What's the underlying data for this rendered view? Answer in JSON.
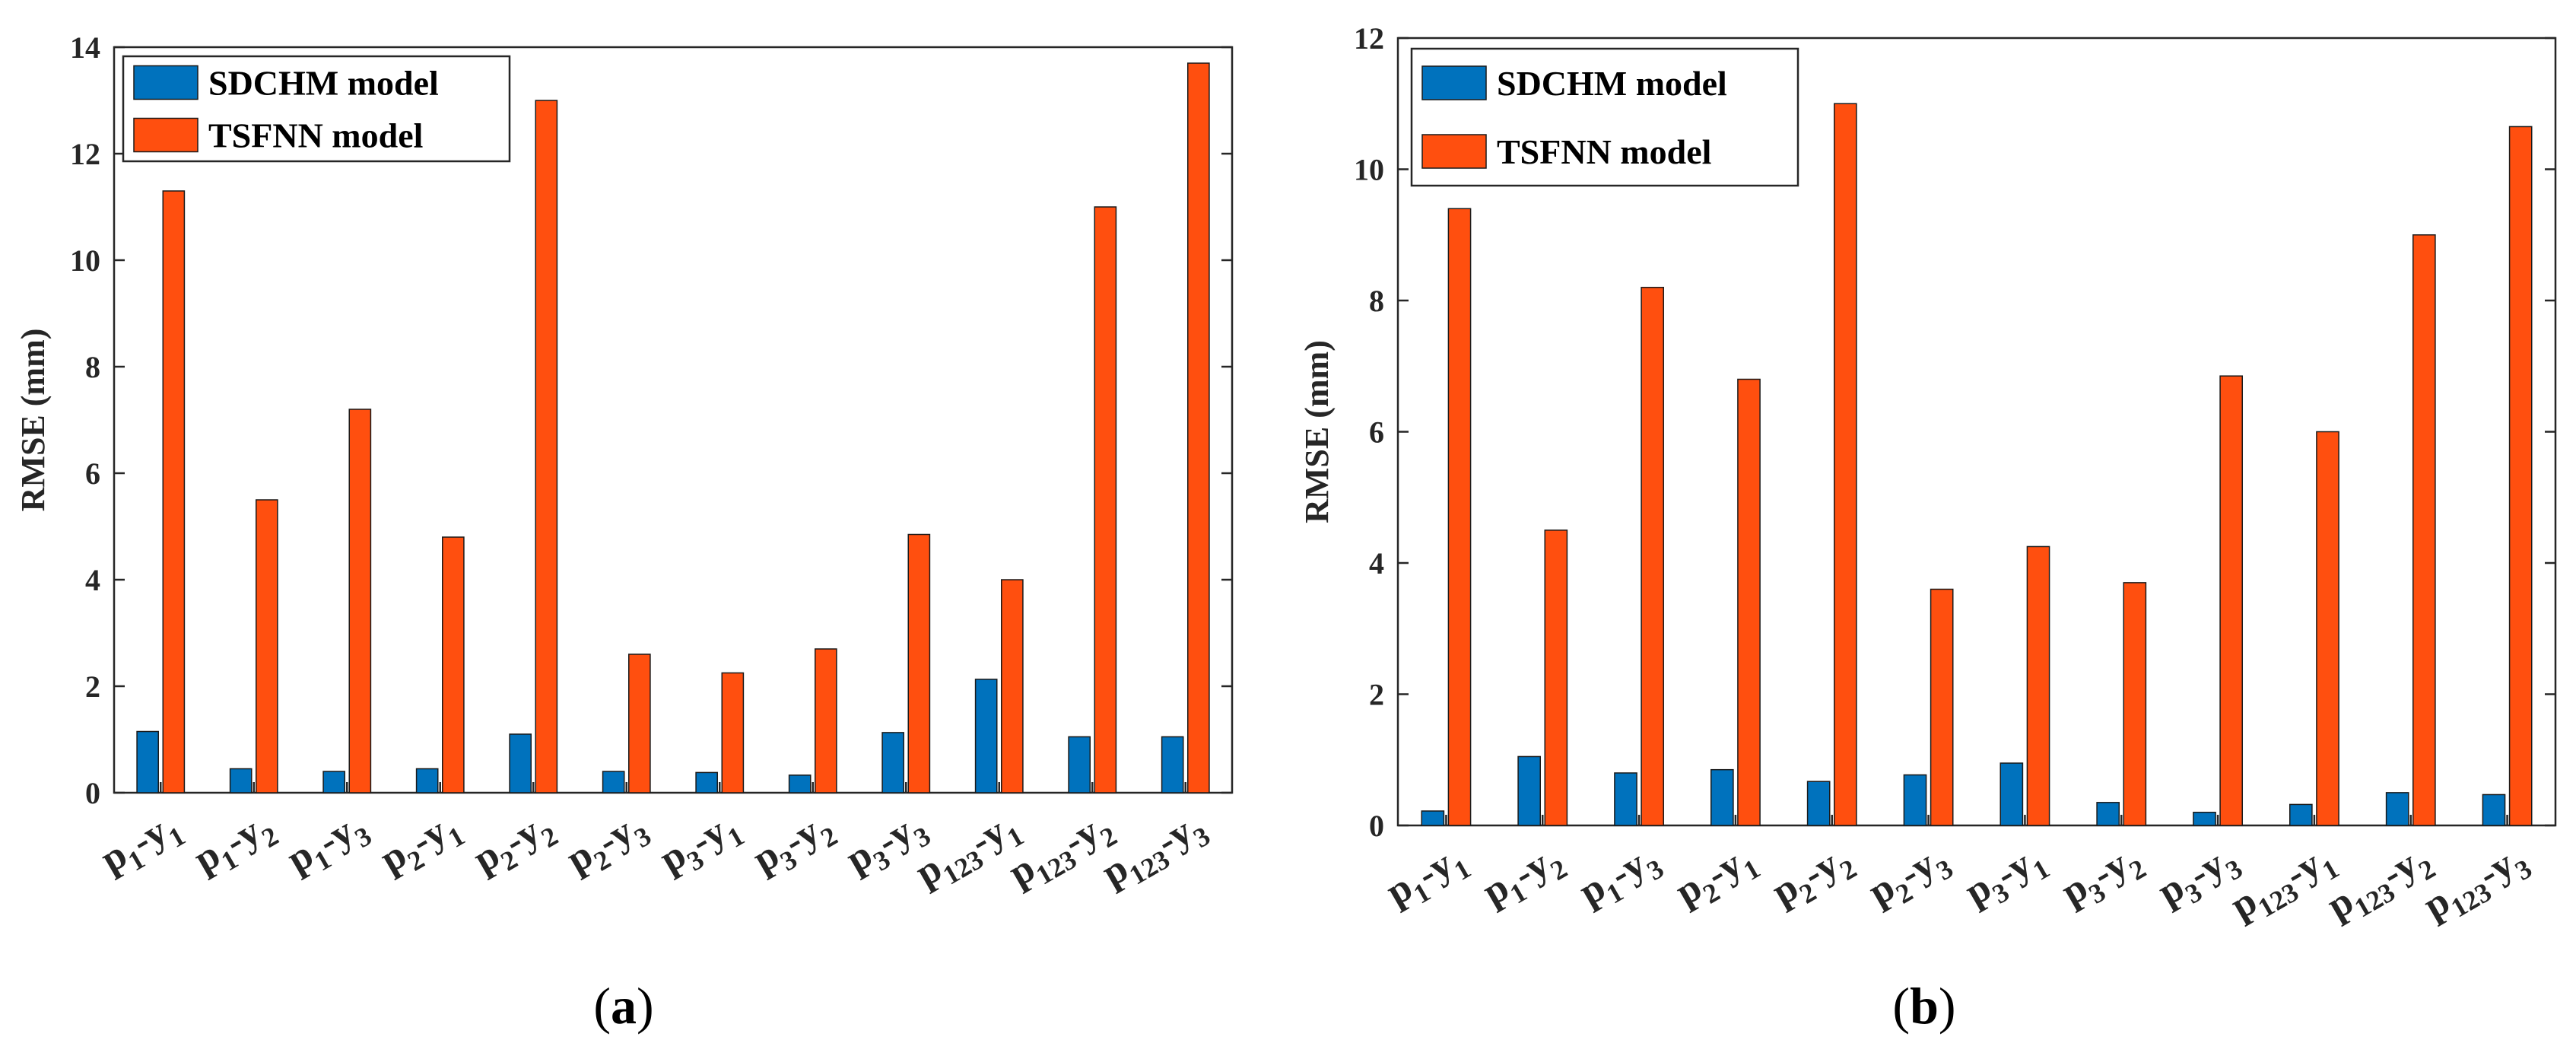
{
  "legend": [
    "SDCHM model",
    "TSFNN model"
  ],
  "colors": {
    "SDCHM model": "#0072BD",
    "TSFNN model": "#FF4F0F"
  },
  "chart_data": [
    {
      "type": "bar",
      "panel": "(a)",
      "ylabel": "RMSE (mm)",
      "xlabel": "",
      "ylim": [
        0,
        14
      ],
      "yticks": [
        0,
        2,
        4,
        6,
        8,
        10,
        12,
        14
      ],
      "categories": [
        "p1-y1",
        "p1-y2",
        "p1-y3",
        "p2-y1",
        "p2-y2",
        "p2-y3",
        "p3-y1",
        "p3-y2",
        "p3-y3",
        "p123-y1",
        "p123-y2",
        "p123-y3"
      ],
      "category_parts": [
        [
          "p",
          "1",
          "-y",
          "1"
        ],
        [
          "p",
          "1",
          "-y",
          "2"
        ],
        [
          "p",
          "1",
          "-y",
          "3"
        ],
        [
          "p",
          "2",
          "-y",
          "1"
        ],
        [
          "p",
          "2",
          "-y",
          "2"
        ],
        [
          "p",
          "2",
          "-y",
          "3"
        ],
        [
          "p",
          "3",
          "-y",
          "1"
        ],
        [
          "p",
          "3",
          "-y",
          "2"
        ],
        [
          "p",
          "3",
          "-y",
          "3"
        ],
        [
          "p",
          "123",
          "-y",
          "1"
        ],
        [
          "p",
          "123",
          "-y",
          "2"
        ],
        [
          "p",
          "123",
          "-y",
          "3"
        ]
      ],
      "legend_position": "top-left",
      "series": [
        {
          "name": "SDCHM model",
          "values": [
            1.15,
            0.45,
            0.4,
            0.45,
            1.1,
            0.4,
            0.38,
            0.33,
            1.13,
            2.13,
            1.05,
            1.05
          ]
        },
        {
          "name": "TSFNN model",
          "values": [
            11.3,
            5.5,
            7.2,
            4.8,
            13.0,
            2.6,
            2.25,
            2.7,
            4.85,
            4.0,
            11.0,
            13.7
          ]
        }
      ]
    },
    {
      "type": "bar",
      "panel": "(b)",
      "ylabel": "RMSE (mm)",
      "xlabel": "",
      "ylim": [
        0,
        12
      ],
      "yticks": [
        0,
        2,
        4,
        6,
        8,
        10,
        12
      ],
      "categories": [
        "p1-y1",
        "p1-y2",
        "p1-y3",
        "p2-y1",
        "p2-y2",
        "p2-y3",
        "p3-y1",
        "p3-y2",
        "p3-y3",
        "p123-y1",
        "p123-y2",
        "p123-y3"
      ],
      "category_parts": [
        [
          "p",
          "1",
          "-y",
          "1"
        ],
        [
          "p",
          "1",
          "-y",
          "2"
        ],
        [
          "p",
          "1",
          "-y",
          "3"
        ],
        [
          "p",
          "2",
          "-y",
          "1"
        ],
        [
          "p",
          "2",
          "-y",
          "2"
        ],
        [
          "p",
          "2",
          "-y",
          "3"
        ],
        [
          "p",
          "3",
          "-y",
          "1"
        ],
        [
          "p",
          "3",
          "-y",
          "2"
        ],
        [
          "p",
          "3",
          "-y",
          "3"
        ],
        [
          "p",
          "123",
          "-y",
          "1"
        ],
        [
          "p",
          "123",
          "-y",
          "2"
        ],
        [
          "p",
          "123",
          "-y",
          "3"
        ]
      ],
      "legend_position": "top-left",
      "series": [
        {
          "name": "SDCHM model",
          "values": [
            0.22,
            1.05,
            0.8,
            0.85,
            0.67,
            0.77,
            0.95,
            0.35,
            0.2,
            0.32,
            0.5,
            0.47
          ]
        },
        {
          "name": "TSFNN model",
          "values": [
            9.4,
            4.5,
            8.2,
            6.8,
            11.0,
            3.6,
            4.25,
            3.7,
            6.85,
            6.0,
            9.0,
            10.65
          ]
        }
      ]
    }
  ]
}
